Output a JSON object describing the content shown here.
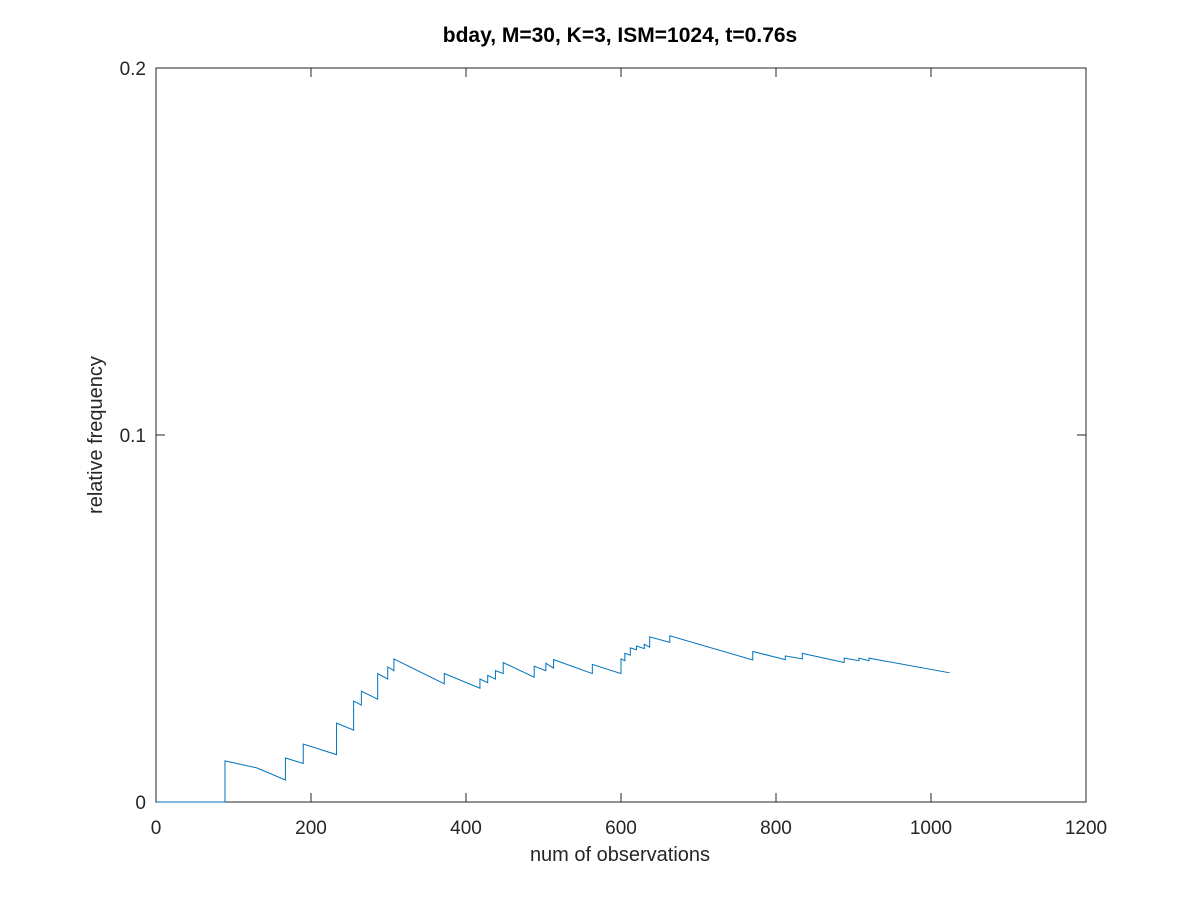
{
  "chart_data": {
    "type": "line",
    "title": "bday, M=30, K=3, ISM=1024, t=0.76s",
    "xlabel": "num of observations",
    "ylabel": "relative frequency",
    "xlim": [
      0,
      1200
    ],
    "ylim": [
      0,
      0.2
    ],
    "xticks": [
      0,
      200,
      400,
      600,
      800,
      1000,
      1200
    ],
    "xtick_labels": [
      "0",
      "200",
      "400",
      "600",
      "800",
      "1000",
      "1200"
    ],
    "yticks": [
      0,
      0.1,
      0.2
    ],
    "ytick_labels": [
      "0",
      "0.1",
      "0.2"
    ],
    "grid": false,
    "series_color": "#0072BD",
    "axes_color": "#262626",
    "series": [
      {
        "values": [
          [
            1,
            0
          ],
          [
            89,
            0
          ],
          [
            89,
            0.0112
          ],
          [
            130,
            0.0093
          ],
          [
            167,
            0.006
          ],
          [
            167,
            0.012
          ],
          [
            190,
            0.0105
          ],
          [
            190,
            0.0158
          ],
          [
            233,
            0.0129
          ],
          [
            233,
            0.0215
          ],
          [
            255,
            0.0196
          ],
          [
            255,
            0.0275
          ],
          [
            265,
            0.0264
          ],
          [
            265,
            0.0302
          ],
          [
            286,
            0.028
          ],
          [
            286,
            0.035
          ],
          [
            299,
            0.0335
          ],
          [
            299,
            0.0368
          ],
          [
            307,
            0.0358
          ],
          [
            307,
            0.039
          ],
          [
            372,
            0.0322
          ],
          [
            372,
            0.035
          ],
          [
            418,
            0.031
          ],
          [
            418,
            0.0335
          ],
          [
            428,
            0.0325
          ],
          [
            428,
            0.0345
          ],
          [
            438,
            0.0335
          ],
          [
            438,
            0.0358
          ],
          [
            448,
            0.035
          ],
          [
            448,
            0.038
          ],
          [
            488,
            0.034
          ],
          [
            488,
            0.037
          ],
          [
            503,
            0.0358
          ],
          [
            503,
            0.0378
          ],
          [
            513,
            0.0365
          ],
          [
            513,
            0.0388
          ],
          [
            563,
            0.035
          ],
          [
            563,
            0.0375
          ],
          [
            600,
            0.035
          ],
          [
            600,
            0.039
          ],
          [
            605,
            0.0385
          ],
          [
            605,
            0.0405
          ],
          [
            612,
            0.04
          ],
          [
            612,
            0.042
          ],
          [
            620,
            0.0415
          ],
          [
            620,
            0.0425
          ],
          [
            630,
            0.0418
          ],
          [
            630,
            0.043
          ],
          [
            637,
            0.0422
          ],
          [
            637,
            0.045
          ],
          [
            663,
            0.0435
          ],
          [
            663,
            0.0453
          ],
          [
            770,
            0.0387
          ],
          [
            770,
            0.041
          ],
          [
            812,
            0.0388
          ],
          [
            812,
            0.0398
          ],
          [
            834,
            0.039
          ],
          [
            834,
            0.0405
          ],
          [
            888,
            0.038
          ],
          [
            888,
            0.0392
          ],
          [
            907,
            0.0385
          ],
          [
            907,
            0.0392
          ],
          [
            920,
            0.0385
          ],
          [
            920,
            0.0392
          ],
          [
            1024,
            0.0352
          ]
        ]
      }
    ]
  }
}
